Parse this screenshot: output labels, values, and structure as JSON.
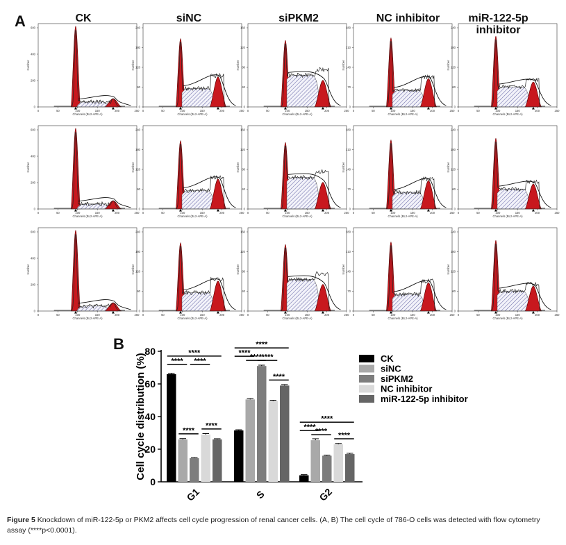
{
  "figure": {
    "panel_a_label": "A",
    "panel_b_label": "B",
    "columns": [
      "CK",
      "siNC",
      "siPKM2",
      "NC inhibitor",
      "miR-122-5p inhibitor"
    ],
    "histogram": {
      "x_axis_title": "Channels (BL2-APE-A)",
      "y_axis_title": "Number",
      "x_ticks": [
        "0",
        "50",
        "100",
        "150",
        "200",
        "250"
      ],
      "y_ticks_by_column": [
        [
          "0",
          "200",
          "400",
          "600"
        ],
        [
          "0",
          "60",
          "120",
          "180",
          "240"
        ],
        [
          "0",
          "40",
          "80",
          "120",
          "160"
        ],
        [
          "0",
          "70",
          "140",
          "210",
          "280"
        ],
        [
          "0",
          "60",
          "120",
          "180",
          "240"
        ]
      ]
    },
    "caption_label": "Figure 5",
    "caption_text": "Knockdown of miR-122-5p or PKM2 affects cell cycle progression of renal cancer cells. (A, B) The cell cycle of 786-O cells was detected with flow cytometry assay (****p<0.0001).",
    "colors": {
      "g_peak_fill": "#c8181e",
      "s_phase_hatch": "#6a6aa8",
      "bar_colors": [
        "#000000",
        "#a9a9a9",
        "#7d7d7d",
        "#d9d9d9",
        "#656565"
      ]
    }
  },
  "chart_data": {
    "type": "bar",
    "categories": [
      "G1",
      "S",
      "G2"
    ],
    "series": [
      {
        "name": "CK",
        "values": [
          66,
          31.5,
          4
        ]
      },
      {
        "name": "siNC",
        "values": [
          26,
          50.5,
          25.5
        ]
      },
      {
        "name": "siPKM2",
        "values": [
          14.5,
          71,
          16
        ]
      },
      {
        "name": "NC inhibitor",
        "values": [
          29,
          49.5,
          23
        ]
      },
      {
        "name": "miR-122-5p inhibitor",
        "values": [
          26,
          59,
          17
        ]
      }
    ],
    "errors": [
      [
        0.6,
        0.4,
        0.4
      ],
      [
        0.5,
        0.5,
        0.9
      ],
      [
        0.4,
        0.5,
        0.4
      ],
      [
        0.6,
        0.5,
        0.5
      ],
      [
        0.4,
        0.6,
        0.5
      ]
    ],
    "title": "",
    "xlabel": "",
    "ylabel": "Cell cycle distribution (%)",
    "ylim": [
      0,
      80
    ],
    "yticks": [
      0,
      20,
      40,
      60,
      80
    ],
    "legend": "right",
    "significance_label": "****",
    "significance": [
      {
        "category": 0,
        "from": 0,
        "to": 1,
        "level": 1
      },
      {
        "category": 0,
        "from": 0,
        "to": 4,
        "level": 2
      },
      {
        "category": 0,
        "from": 1,
        "to": 2,
        "level": 0
      },
      {
        "category": 0,
        "from": 3,
        "to": 4,
        "level": 0
      },
      {
        "category": 0,
        "from": 2,
        "to": 3,
        "level": 1
      },
      {
        "category": 1,
        "from": 0,
        "to": 1,
        "level": 1
      },
      {
        "category": 1,
        "from": 0,
        "to": 4,
        "level": 2
      },
      {
        "category": 1,
        "from": 1,
        "to": 2,
        "level": 0
      },
      {
        "category": 1,
        "from": 2,
        "to": 3,
        "level": 0
      },
      {
        "category": 1,
        "from": 3,
        "to": 4,
        "level": 0
      },
      {
        "category": 2,
        "from": 0,
        "to": 1,
        "level": 1
      },
      {
        "category": 2,
        "from": 0,
        "to": 4,
        "level": 2
      },
      {
        "category": 2,
        "from": 1,
        "to": 2,
        "level": 0
      },
      {
        "category": 2,
        "from": 3,
        "to": 4,
        "level": 0
      }
    ]
  }
}
